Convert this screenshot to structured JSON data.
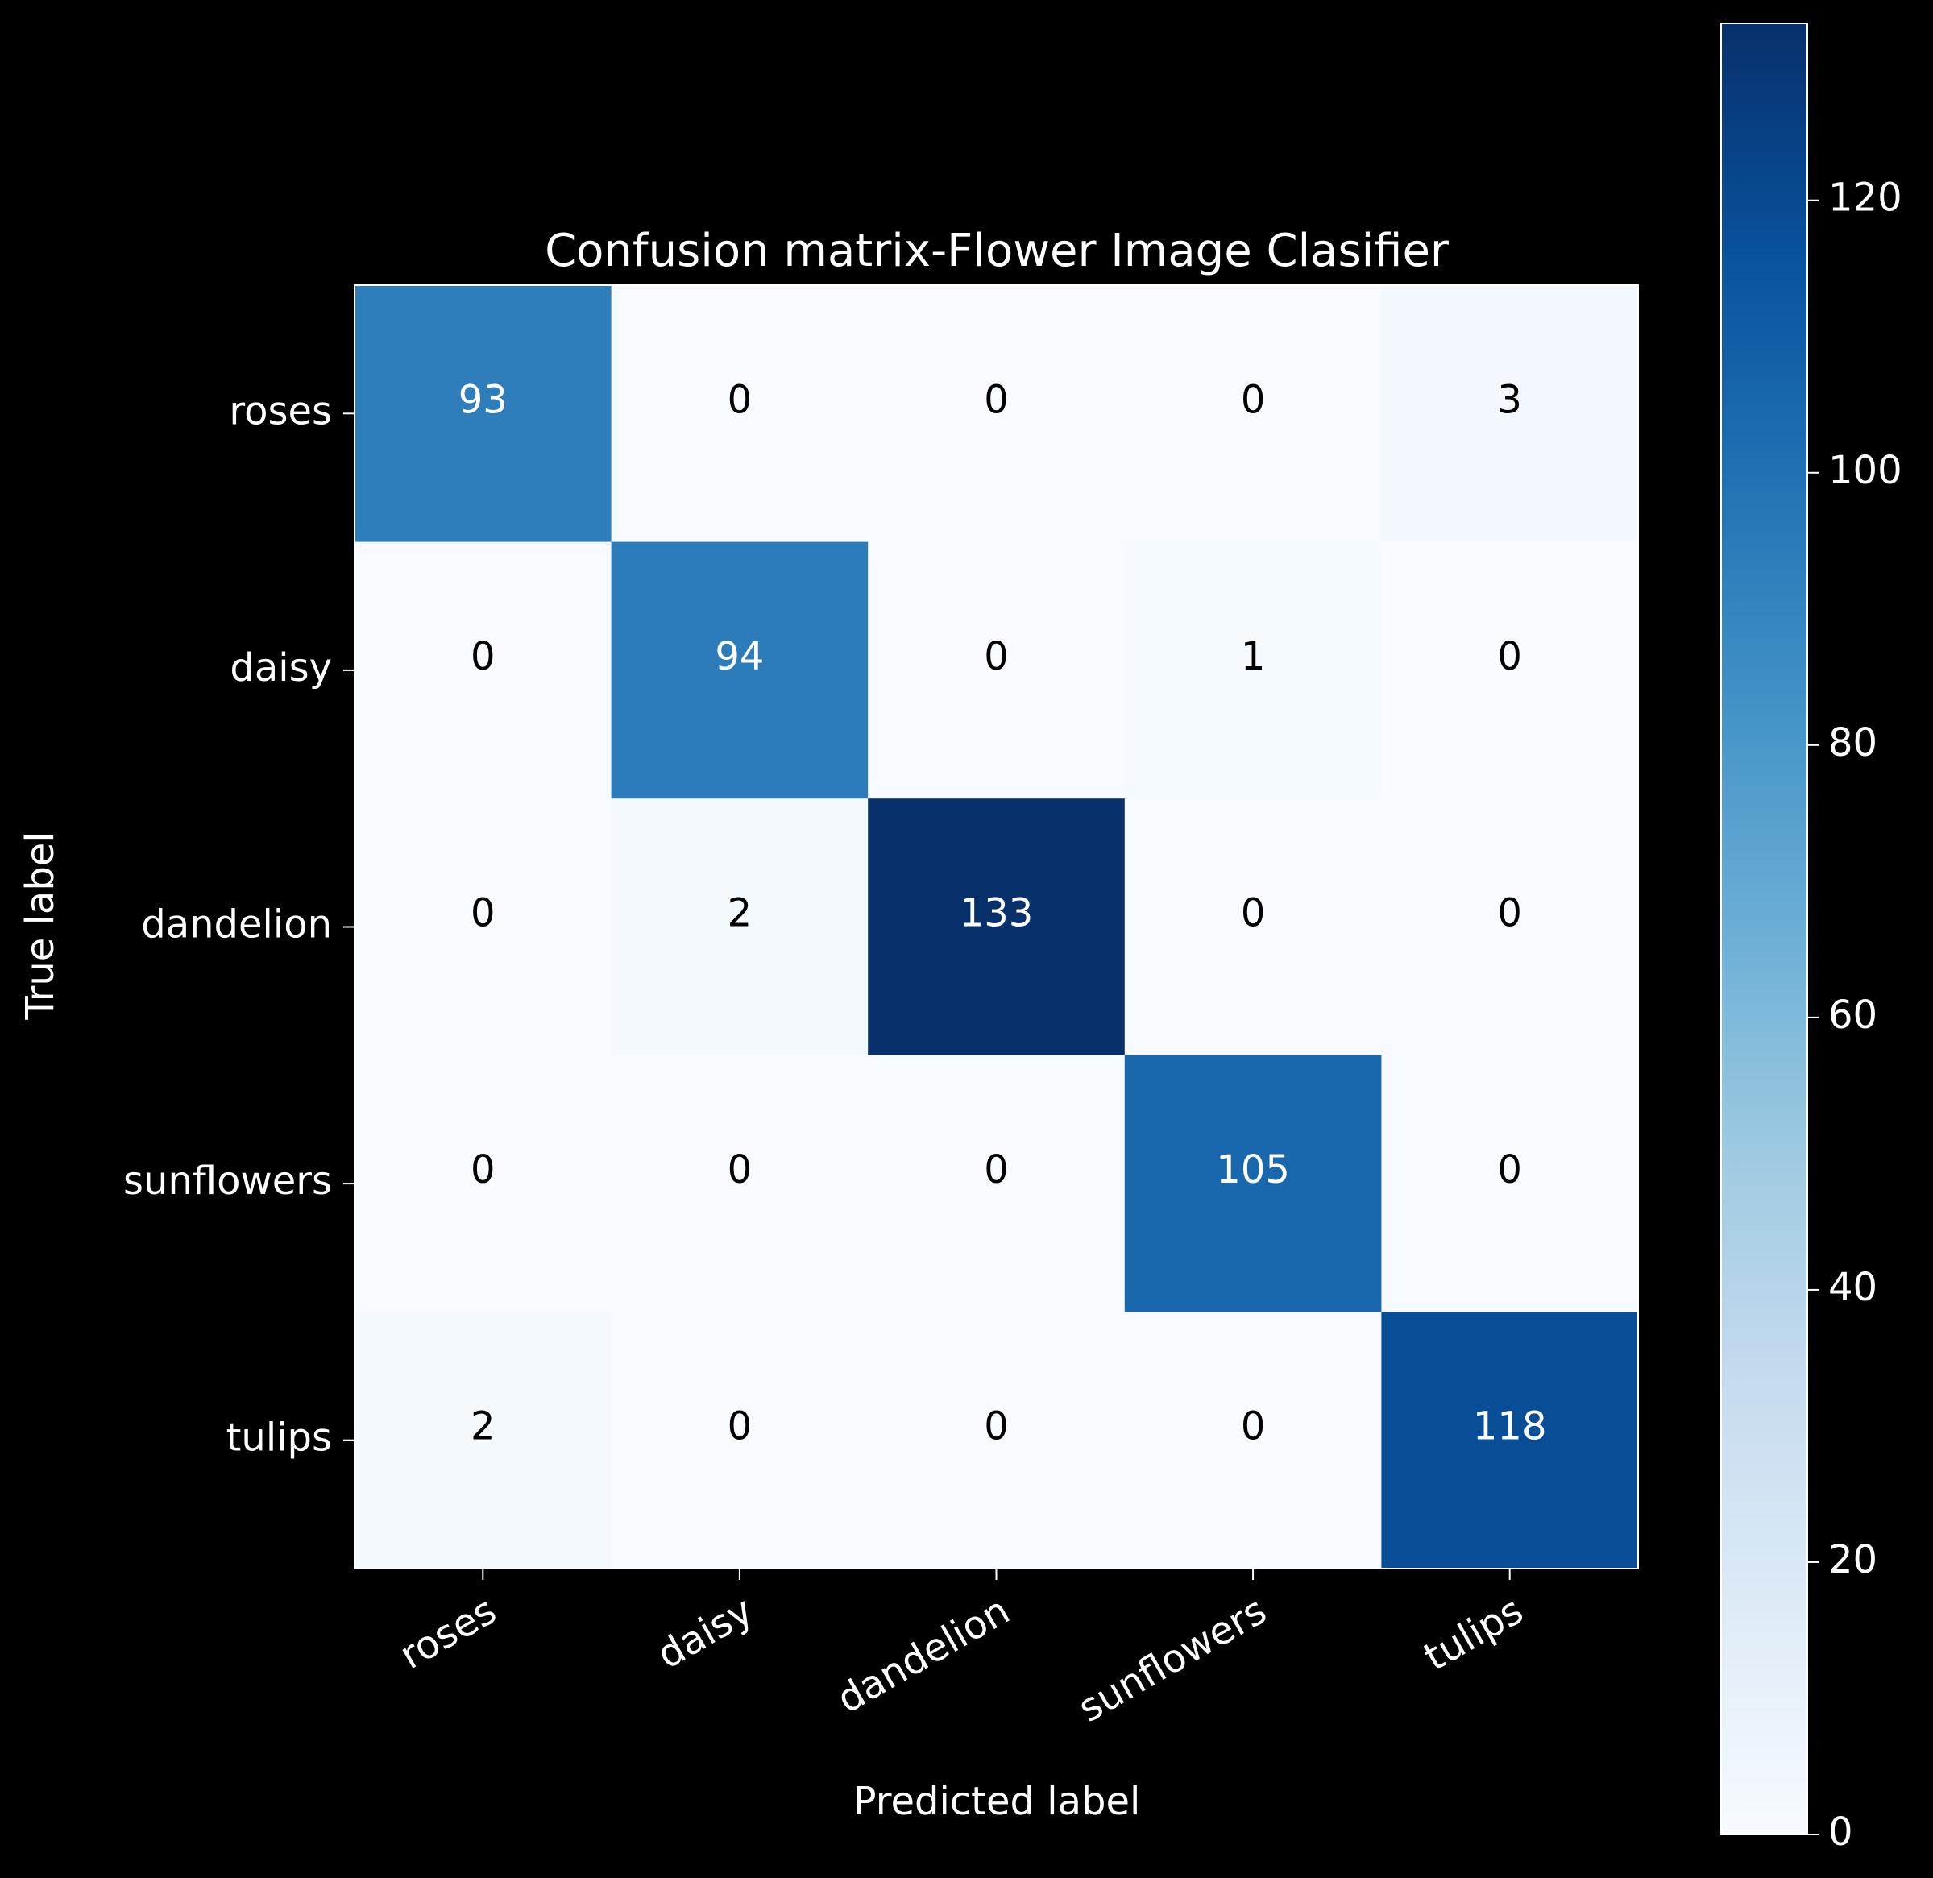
{
  "chart_data": {
    "type": "heatmap",
    "title": "Confusion matrix-Flower Image Clasifier",
    "xlabel": "Predicted label",
    "ylabel": "True label",
    "x_categories": [
      "roses",
      "daisy",
      "dandelion",
      "sunflowers",
      "tulips"
    ],
    "y_categories": [
      "roses",
      "daisy",
      "dandelion",
      "sunflowers",
      "tulips"
    ],
    "matrix": [
      [
        93,
        0,
        0,
        0,
        3
      ],
      [
        0,
        94,
        0,
        1,
        0
      ],
      [
        0,
        2,
        133,
        0,
        0
      ],
      [
        0,
        0,
        0,
        105,
        0
      ],
      [
        2,
        0,
        0,
        0,
        118
      ]
    ],
    "colorbar": {
      "min": 0,
      "max": 133,
      "ticks": [
        0,
        20,
        40,
        60,
        80,
        100,
        120
      ],
      "colormap": "Blues"
    },
    "background_color": "#000000",
    "text_color": "#ffffff"
  }
}
